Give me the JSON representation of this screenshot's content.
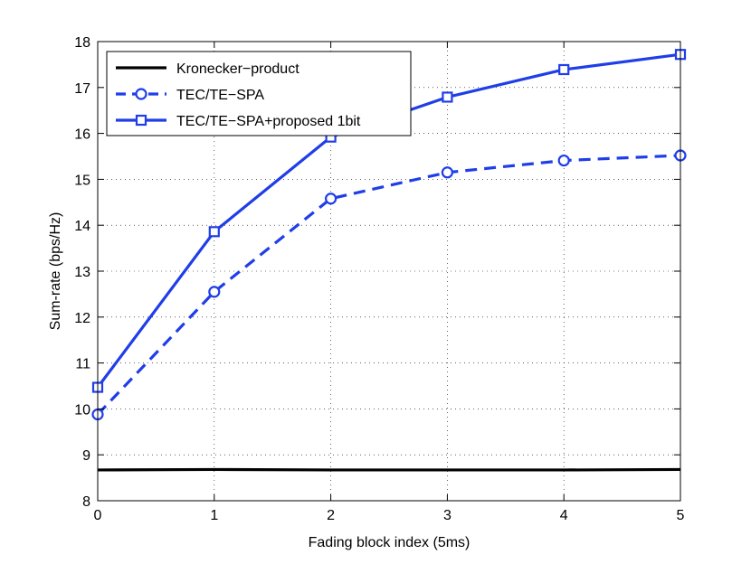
{
  "chart_data": {
    "type": "line",
    "title": "",
    "xlabel": "Fading block index (5ms)",
    "ylabel": "Sum-rate (bps/Hz)",
    "xlim": [
      0,
      5
    ],
    "ylim": [
      8,
      18
    ],
    "xticks": [
      0,
      1,
      2,
      3,
      4,
      5
    ],
    "yticks": [
      8,
      9,
      10,
      11,
      12,
      13,
      14,
      15,
      16,
      17,
      18
    ],
    "grid": true,
    "legend_location": "top-left",
    "x": [
      0,
      1,
      2,
      3,
      4,
      5
    ],
    "series": [
      {
        "name": "Kronecker−product",
        "values": [
          8.67,
          8.68,
          8.67,
          8.67,
          8.67,
          8.68
        ],
        "color": "#000000",
        "line_style": "solid",
        "marker": "none"
      },
      {
        "name": "TEC/TE−SPA",
        "values": [
          9.88,
          12.55,
          14.58,
          15.15,
          15.41,
          15.52
        ],
        "color": "#1f3ee8",
        "line_style": "dashed",
        "marker": "circle"
      },
      {
        "name": "TEC/TE−SPA+proposed 1bit",
        "values": [
          10.47,
          13.86,
          15.92,
          16.79,
          17.39,
          17.72
        ],
        "color": "#1f3ee8",
        "line_style": "solid",
        "marker": "square"
      }
    ]
  }
}
